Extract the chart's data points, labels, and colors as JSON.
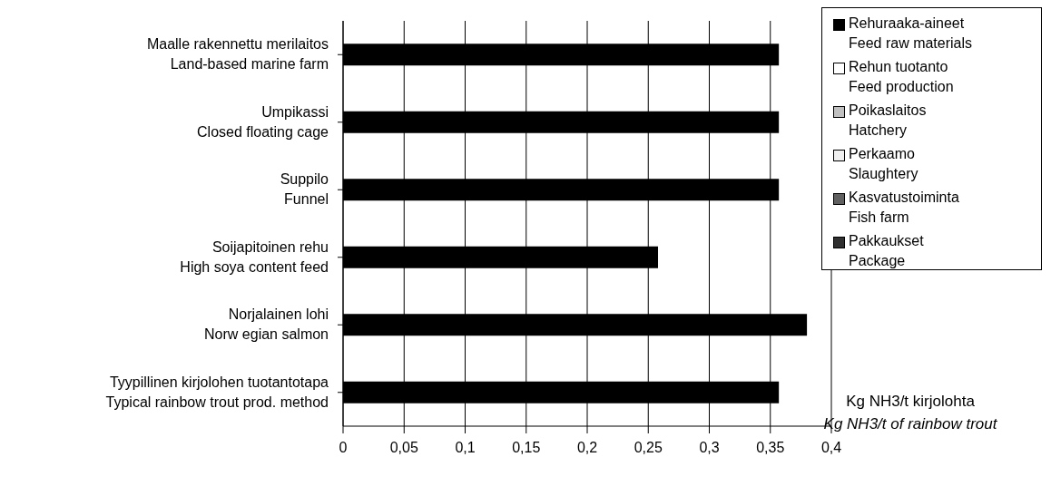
{
  "chart_data": {
    "type": "bar",
    "orientation": "horizontal",
    "stacked": true,
    "categories": [
      "Maalle rakennettu merilaitos\nLand-based marine farm",
      "Umpikassi\nClosed floating cage",
      "Suppilo\nFunnel",
      "Soijapitoinen rehu\nHigh soya content feed",
      "Norjalainen lohi\nNorw egian salmon",
      "Tyypillinen kirjolohen tuotantotapa\nTypical rainbow  trout prod. method"
    ],
    "series": [
      {
        "name": "Rehuraaka-aineet\nFeed raw  materials",
        "color": "#000000",
        "values": [
          0.357,
          0.357,
          0.357,
          0.258,
          0.38,
          0.357
        ]
      },
      {
        "name": "Rehun tuotanto\nFeed production",
        "color": "#ffffff",
        "values": [
          0,
          0,
          0,
          0,
          0,
          0
        ]
      },
      {
        "name": "Poikaslaitos\nHatchery",
        "color": "#c0c0c0",
        "values": [
          0,
          0,
          0,
          0,
          0,
          0
        ]
      },
      {
        "name": "Perkaamo\nSlaughtery",
        "color": "#f0f0f0",
        "values": [
          0,
          0,
          0,
          0,
          0,
          0
        ]
      },
      {
        "name": "Kasvatustoiminta\nFish farm",
        "color": "#606060",
        "values": [
          0,
          0,
          0,
          0,
          0,
          0
        ]
      },
      {
        "name": "Pakkaukset\nPackage",
        "color": "#303030",
        "values": [
          0,
          0,
          0,
          0,
          0,
          0
        ]
      }
    ],
    "xlim": [
      0,
      0.4
    ],
    "xticks": [
      0,
      {
        "value": 0.05,
        "label": "0,05"
      },
      {
        "value": 0.1,
        "label": "0,1"
      },
      {
        "value": 0.15,
        "label": "0,15"
      },
      {
        "value": 0.2,
        "label": "0,2"
      },
      {
        "value": 0.25,
        "label": "0,25"
      },
      {
        "value": 0.3,
        "label": "0,3"
      },
      {
        "value": 0.35,
        "label": "0,35"
      },
      {
        "value": 0.4,
        "label": "0,4"
      }
    ],
    "xlabel": "Kg NH3/t kirjolohta\nKg NH3/t of rainbow trout",
    "grid": "x",
    "legend": "top right"
  }
}
